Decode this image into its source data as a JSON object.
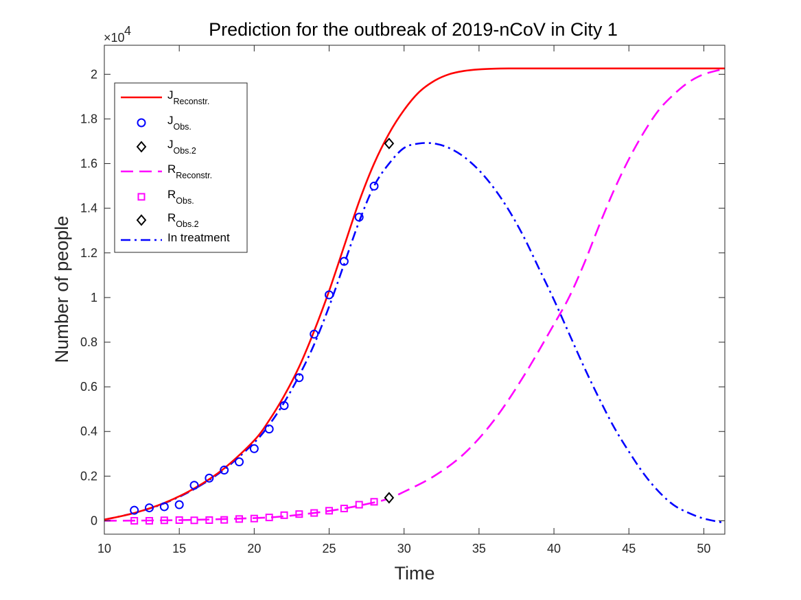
{
  "chart_data": {
    "type": "line",
    "title": "Prediction for the outbreak of 2019-nCoV in City 1",
    "xlabel": "Time",
    "ylabel": "Number of people",
    "xlim": [
      10,
      51.4
    ],
    "ylim": [
      -0.06,
      2.13
    ],
    "y_multiplier_label": "×10",
    "y_multiplier_exp": "4",
    "xticks": [
      "10",
      "15",
      "20",
      "25",
      "30",
      "35",
      "40",
      "45",
      "50"
    ],
    "xtick_values": [
      10,
      15,
      20,
      25,
      30,
      35,
      40,
      45,
      50
    ],
    "yticks": [
      "0",
      "0.2",
      "0.4",
      "0.6",
      "0.8",
      "1",
      "1.2",
      "1.4",
      "1.6",
      "1.8",
      "2"
    ],
    "ytick_values": [
      0,
      0.2,
      0.4,
      0.6,
      0.8,
      1.0,
      1.2,
      1.4,
      1.6,
      1.8,
      2.0
    ],
    "legend": [
      {
        "main": "J",
        "sub": "Reconstr.",
        "style": "solid-line",
        "color": "#ff0000"
      },
      {
        "main": "J",
        "sub": "Obs.",
        "style": "circle",
        "color": "#0000ff"
      },
      {
        "main": "J",
        "sub": "Obs.2",
        "style": "diamond",
        "color": "#000000"
      },
      {
        "main": "R",
        "sub": "Reconstr.",
        "style": "dashed-line",
        "color": "#ff00ff"
      },
      {
        "main": "R",
        "sub": "Obs.",
        "style": "square",
        "color": "#ff00ff"
      },
      {
        "main": "R",
        "sub": "Obs.2",
        "style": "diamond",
        "color": "#000000"
      },
      {
        "main": "In treatment",
        "sub": "",
        "style": "dashdot-line",
        "color": "#0000ff"
      }
    ],
    "series": [
      {
        "name": "J_Reconstr.",
        "style": "solid",
        "color": "#ff0000",
        "x": [
          10,
          12,
          14,
          16,
          18,
          20,
          21,
          22,
          23,
          24,
          25,
          26,
          27,
          28,
          29,
          30,
          31,
          32,
          33,
          34,
          35,
          36,
          37,
          38,
          40,
          45,
          51.4
        ],
        "y": [
          0.005,
          0.035,
          0.08,
          0.145,
          0.235,
          0.36,
          0.45,
          0.56,
          0.69,
          0.85,
          1.03,
          1.23,
          1.43,
          1.6,
          1.735,
          1.84,
          1.92,
          1.97,
          2.0,
          2.015,
          2.022,
          2.025,
          2.026,
          2.026,
          2.026,
          2.026,
          2.026
        ]
      },
      {
        "name": "J_Obs.",
        "style": "circle",
        "color": "#0000ff",
        "x": [
          12,
          13,
          14,
          15,
          16,
          17,
          18,
          19,
          20,
          21,
          22,
          23,
          24,
          25,
          26,
          27,
          28
        ],
        "y": [
          0.047,
          0.058,
          0.063,
          0.072,
          0.159,
          0.191,
          0.227,
          0.264,
          0.323,
          0.411,
          0.516,
          0.641,
          0.836,
          1.012,
          1.162,
          1.36,
          1.499
        ]
      },
      {
        "name": "J_Obs.2",
        "style": "diamond",
        "color": "#000000",
        "x": [
          29
        ],
        "y": [
          1.69
        ]
      },
      {
        "name": "R_Reconstr.",
        "style": "dashed",
        "color": "#ff00ff",
        "x": [
          10,
          15,
          20,
          22,
          24,
          26,
          28,
          29,
          30,
          32,
          34,
          36,
          38,
          40,
          41,
          42,
          43,
          44,
          45,
          46,
          47,
          48,
          49,
          50,
          51.4
        ],
        "y": [
          0.0,
          0.003,
          0.012,
          0.02,
          0.035,
          0.055,
          0.082,
          0.1,
          0.13,
          0.2,
          0.3,
          0.45,
          0.65,
          0.88,
          1.0,
          1.15,
          1.32,
          1.48,
          1.62,
          1.74,
          1.84,
          1.91,
          1.965,
          2.0,
          2.025
        ]
      },
      {
        "name": "R_Obs.",
        "style": "square",
        "color": "#ff00ff",
        "x": [
          12,
          13,
          14,
          15,
          16,
          17,
          18,
          19,
          20,
          21,
          22,
          23,
          24,
          25,
          26,
          27,
          28
        ],
        "y": [
          0.0,
          0.0,
          0.002,
          0.003,
          0.002,
          0.003,
          0.004,
          0.008,
          0.01,
          0.015,
          0.025,
          0.03,
          0.035,
          0.045,
          0.055,
          0.072,
          0.085
        ]
      },
      {
        "name": "R_Obs.2",
        "style": "diamond",
        "color": "#000000",
        "x": [
          29
        ],
        "y": [
          0.103
        ]
      },
      {
        "name": "In treatment",
        "style": "dashdot",
        "color": "#0000ff",
        "x": [
          10,
          12,
          14,
          16,
          18,
          20,
          21,
          22,
          23,
          24,
          25,
          26,
          27,
          28,
          29,
          30,
          31,
          32,
          33,
          34,
          35,
          36,
          37,
          38,
          39,
          40,
          41,
          42,
          43,
          44,
          45,
          46,
          47,
          48,
          49,
          50,
          51.4
        ],
        "y": [
          0.005,
          0.035,
          0.078,
          0.142,
          0.23,
          0.35,
          0.43,
          0.53,
          0.65,
          0.79,
          0.96,
          1.15,
          1.34,
          1.5,
          1.6,
          1.67,
          1.69,
          1.69,
          1.67,
          1.63,
          1.57,
          1.49,
          1.39,
          1.27,
          1.13,
          0.99,
          0.84,
          0.69,
          0.55,
          0.42,
          0.31,
          0.21,
          0.13,
          0.07,
          0.035,
          0.01,
          -0.01
        ]
      }
    ]
  }
}
